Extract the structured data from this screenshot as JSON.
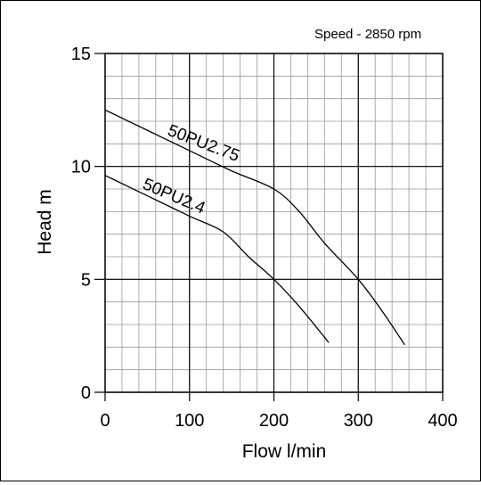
{
  "chart_data": {
    "type": "line",
    "annotation": "Speed - 2850 rpm",
    "xlabel": "Flow l/min",
    "ylabel": "Head m",
    "xlim": [
      0,
      400
    ],
    "ylim": [
      0,
      15
    ],
    "x_ticks": [
      0,
      100,
      200,
      300,
      400
    ],
    "y_ticks": [
      0,
      5,
      10,
      15
    ],
    "grid": true,
    "minor_grid_x_step": 20,
    "minor_grid_y_step": 1,
    "series": [
      {
        "name": "50PU2.75",
        "color": "#000000",
        "points": [
          [
            0,
            12.5
          ],
          [
            50,
            11.6
          ],
          [
            100,
            10.7
          ],
          [
            150,
            9.8
          ],
          [
            200,
            9.0
          ],
          [
            230,
            8.0
          ],
          [
            260,
            6.6
          ],
          [
            300,
            5.0
          ],
          [
            330,
            3.5
          ],
          [
            355,
            2.1
          ]
        ]
      },
      {
        "name": "50PU2.4",
        "color": "#000000",
        "points": [
          [
            0,
            9.6
          ],
          [
            50,
            8.7
          ],
          [
            100,
            7.8
          ],
          [
            140,
            7.1
          ],
          [
            170,
            6.0
          ],
          [
            200,
            5.0
          ],
          [
            230,
            3.8
          ],
          [
            265,
            2.2
          ]
        ]
      }
    ]
  }
}
